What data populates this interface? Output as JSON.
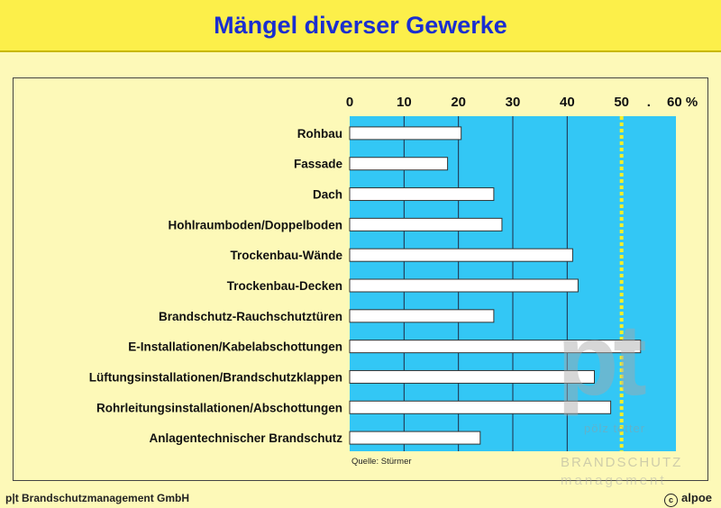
{
  "header": {
    "title": "Mängel diverser Gewerke"
  },
  "footer": {
    "company": "p|t Brandschutzmanagement GmbH",
    "brand": "alpoe",
    "copyright_symbol": "c"
  },
  "watermark": {
    "letters": "pt",
    "line1": "pölz  totter",
    "line2": "BRANDSCHUTZ",
    "line3": "management"
  },
  "colors": {
    "plot_bg": "#33c7f5",
    "bar_fill": "#ffffff",
    "bar_stroke": "#333333",
    "threshold": "#f2ef2a",
    "title": "#1a2ed0",
    "header_bg": "#fcef4a",
    "page_bg": "#fdf9b8"
  },
  "chart_data": {
    "type": "bar",
    "orientation": "horizontal",
    "categories": [
      "Rohbau",
      "Fassade",
      "Dach",
      "Hohlraumboden/Doppelboden",
      "Trockenbau-Wände",
      "Trockenbau-Decken",
      "Brandschutz-Rauchschutztüren",
      "E-Installationen/Kabelabschottungen",
      "Lüftungsinstallationen/Brandschutzklappen",
      "Rohrleitungsinstallationen/Abschottungen",
      "Anlagentechnischer Brandschutz"
    ],
    "values": [
      20.5,
      18,
      26.5,
      28,
      41,
      42,
      26.5,
      53.5,
      45,
      48,
      24
    ],
    "xlim": [
      0,
      60
    ],
    "xticks": [
      "0",
      "10",
      "20",
      "30",
      "40",
      "50",
      ".",
      "60 %"
    ],
    "xtick_values": [
      0,
      10,
      20,
      30,
      40,
      50,
      55,
      60
    ],
    "threshold": 50,
    "grid": true,
    "source": "Quelle: Stürmer"
  }
}
